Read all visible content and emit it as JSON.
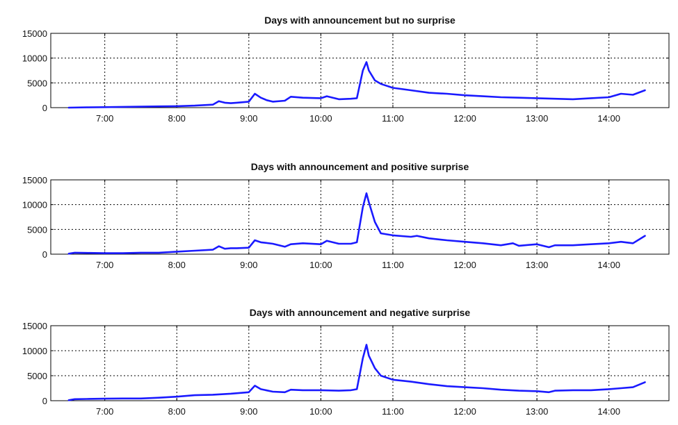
{
  "style": {
    "line_color": "#1a1aff",
    "grid": true
  },
  "chart_data": [
    {
      "type": "line",
      "title": "Days with announcement but no surprise",
      "xlabel": "",
      "ylabel": "",
      "x_ticks": [
        "7:00",
        "8:00",
        "9:00",
        "10:00",
        "11:00",
        "12:00",
        "13:00",
        "14:00"
      ],
      "y_ticks": [
        0,
        5000,
        10000,
        15000
      ],
      "xlim": [
        "6:15",
        "14:50"
      ],
      "ylim": [
        0,
        15000
      ],
      "series": [
        {
          "x": [
            "6:30",
            "6:45",
            "7:00",
            "7:15",
            "7:30",
            "7:45",
            "8:00",
            "8:15",
            "8:30",
            "8:35",
            "8:40",
            "8:45",
            "8:50",
            "9:00",
            "9:05",
            "9:10",
            "9:15",
            "9:20",
            "9:30",
            "9:35",
            "9:45",
            "10:00",
            "10:05",
            "10:15",
            "10:25",
            "10:30",
            "10:35",
            "10:38",
            "10:40",
            "10:45",
            "10:50",
            "11:00",
            "11:15",
            "11:30",
            "11:45",
            "12:00",
            "12:15",
            "12:30",
            "12:45",
            "13:00",
            "13:15",
            "13:30",
            "13:45",
            "14:00",
            "14:10",
            "14:20",
            "14:30"
          ],
          "y": [
            0,
            50,
            100,
            150,
            200,
            250,
            300,
            400,
            600,
            1300,
            1000,
            900,
            1000,
            1200,
            2800,
            2000,
            1500,
            1200,
            1400,
            2200,
            2000,
            1900,
            2300,
            1700,
            1800,
            1900,
            7500,
            9200,
            7500,
            5500,
            4800,
            4000,
            3500,
            3000,
            2800,
            2500,
            2300,
            2100,
            2000,
            1900,
            1800,
            1700,
            1900,
            2100,
            2800,
            2600,
            3500
          ]
        }
      ]
    },
    {
      "type": "line",
      "title": "Days with announcement and positive surprise",
      "xlabel": "",
      "ylabel": "",
      "x_ticks": [
        "7:00",
        "8:00",
        "9:00",
        "10:00",
        "11:00",
        "12:00",
        "13:00",
        "14:00"
      ],
      "y_ticks": [
        0,
        5000,
        10000,
        15000
      ],
      "xlim": [
        "6:15",
        "14:50"
      ],
      "ylim": [
        0,
        15000
      ],
      "series": [
        {
          "x": [
            "6:30",
            "6:35",
            "6:45",
            "7:00",
            "7:15",
            "7:30",
            "7:45",
            "8:00",
            "8:15",
            "8:30",
            "8:35",
            "8:40",
            "8:45",
            "8:50",
            "9:00",
            "9:05",
            "9:10",
            "9:20",
            "9:30",
            "9:35",
            "9:45",
            "10:00",
            "10:05",
            "10:15",
            "10:25",
            "10:30",
            "10:35",
            "10:38",
            "10:40",
            "10:45",
            "10:50",
            "11:00",
            "11:15",
            "11:20",
            "11:30",
            "11:45",
            "12:00",
            "12:15",
            "12:30",
            "12:40",
            "12:45",
            "13:00",
            "13:10",
            "13:15",
            "13:30",
            "13:45",
            "14:00",
            "14:10",
            "14:20",
            "14:30"
          ],
          "y": [
            100,
            300,
            250,
            200,
            200,
            300,
            300,
            500,
            700,
            900,
            1600,
            1100,
            1200,
            1200,
            1300,
            2800,
            2400,
            2100,
            1500,
            2000,
            2200,
            2000,
            2700,
            2100,
            2100,
            2400,
            9500,
            12300,
            10500,
            6500,
            4200,
            3800,
            3500,
            3700,
            3200,
            2800,
            2500,
            2200,
            1800,
            2200,
            1700,
            2000,
            1400,
            1800,
            1800,
            2000,
            2200,
            2500,
            2200,
            3700
          ]
        }
      ]
    },
    {
      "type": "line",
      "title": "Days with announcement and negative surprise",
      "xlabel": "",
      "ylabel": "",
      "x_ticks": [
        "7:00",
        "8:00",
        "9:00",
        "10:00",
        "11:00",
        "12:00",
        "13:00",
        "14:00"
      ],
      "y_ticks": [
        0,
        5000,
        10000,
        15000
      ],
      "xlim": [
        "6:15",
        "14:50"
      ],
      "ylim": [
        0,
        15000
      ],
      "series": [
        {
          "x": [
            "6:30",
            "6:35",
            "6:45",
            "7:00",
            "7:15",
            "7:30",
            "7:45",
            "8:00",
            "8:15",
            "8:30",
            "8:45",
            "9:00",
            "9:05",
            "9:10",
            "9:20",
            "9:30",
            "9:35",
            "9:45",
            "10:00",
            "10:15",
            "10:25",
            "10:30",
            "10:35",
            "10:38",
            "10:40",
            "10:45",
            "10:50",
            "11:00",
            "11:15",
            "11:30",
            "11:45",
            "12:00",
            "12:15",
            "12:30",
            "12:45",
            "13:00",
            "13:10",
            "13:15",
            "13:30",
            "13:45",
            "14:00",
            "14:10",
            "14:20",
            "14:30"
          ],
          "y": [
            100,
            300,
            350,
            400,
            450,
            450,
            600,
            800,
            1100,
            1200,
            1400,
            1700,
            3000,
            2300,
            1800,
            1700,
            2200,
            2100,
            2100,
            2000,
            2100,
            2300,
            8500,
            11200,
            9000,
            6500,
            5000,
            4200,
            3800,
            3300,
            2900,
            2700,
            2500,
            2200,
            2000,
            1900,
            1700,
            2000,
            2100,
            2100,
            2300,
            2500,
            2700,
            3700
          ]
        }
      ]
    }
  ]
}
